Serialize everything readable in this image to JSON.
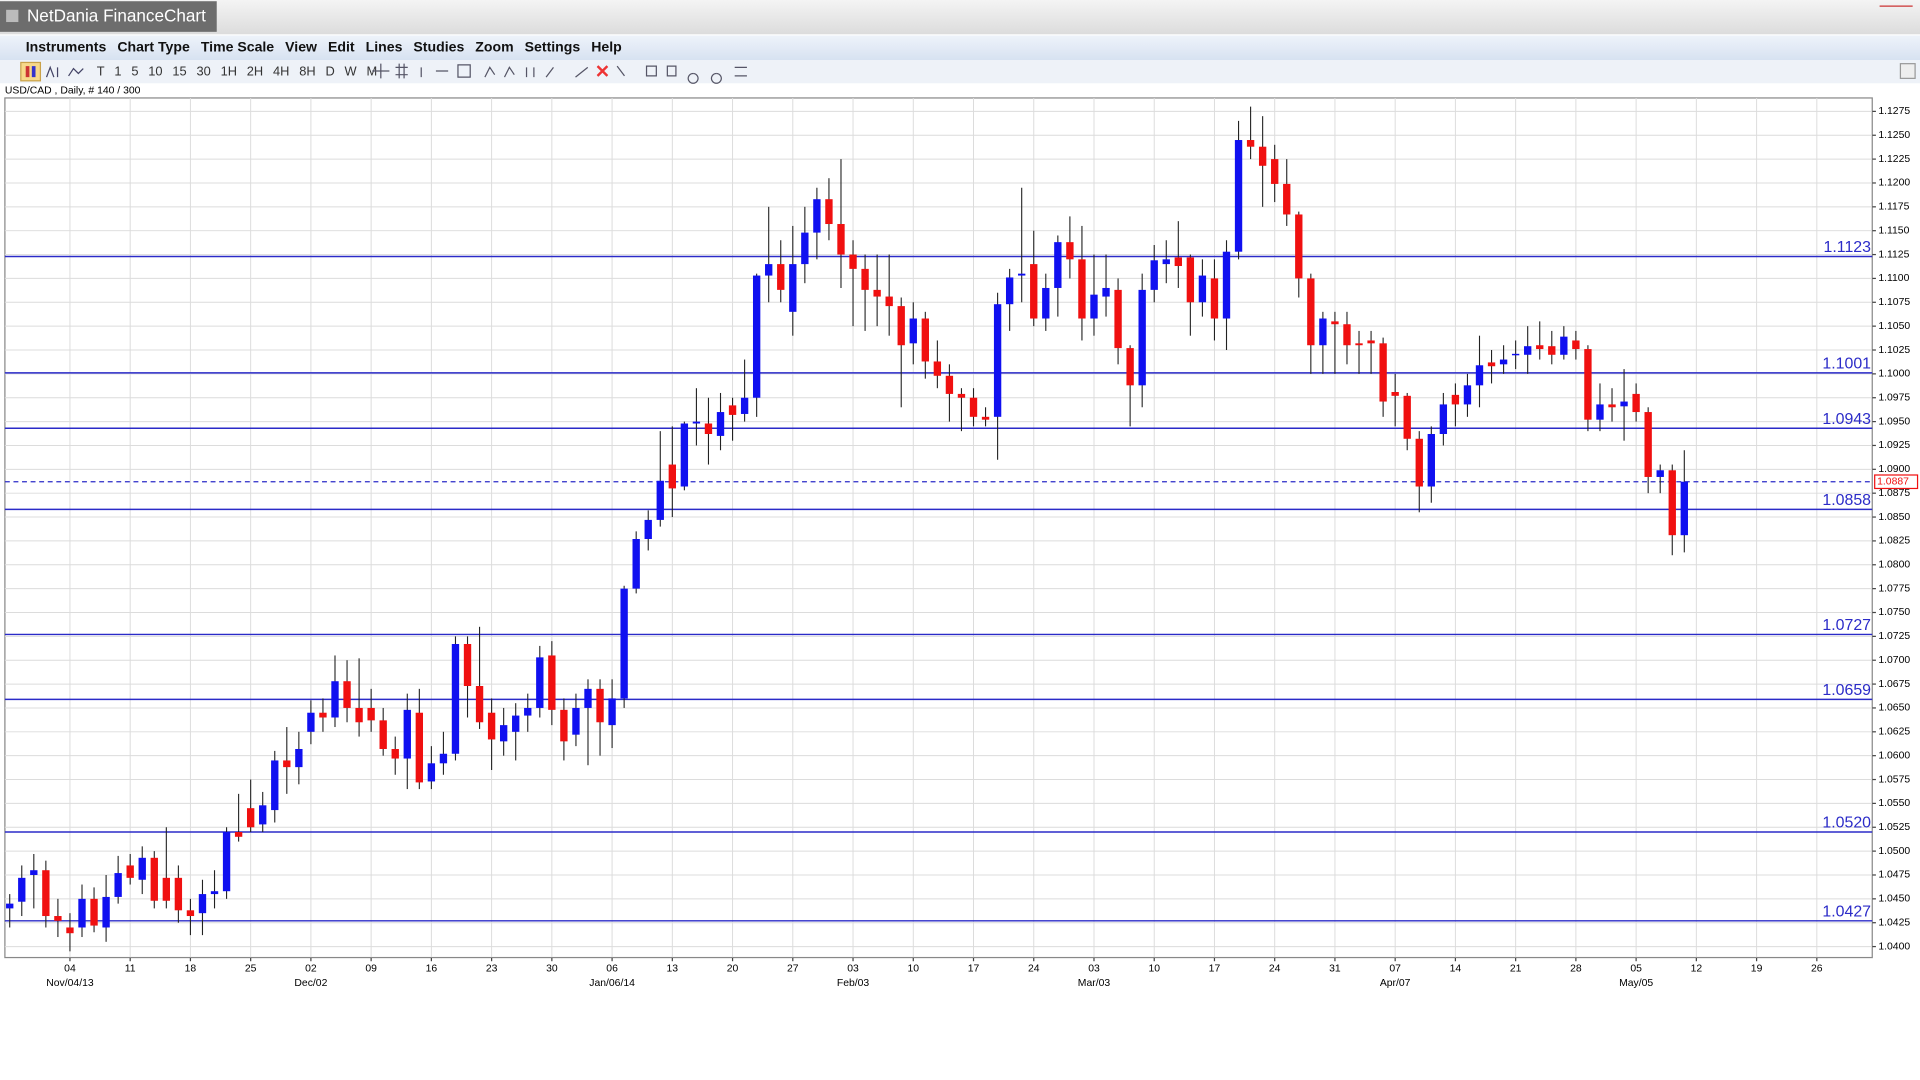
{
  "window_title": "NetDania FinanceChart",
  "menu": [
    "Instruments",
    "Chart Type",
    "Time Scale",
    "View",
    "Edit",
    "Lines",
    "Studies",
    "Zoom",
    "Settings",
    "Help"
  ],
  "toolbar": [
    "T",
    "1",
    "5",
    "10",
    "15",
    "30",
    "1H",
    "2H",
    "4H",
    "8H",
    "D",
    "W",
    "M"
  ],
  "chart_data": {
    "type": "candlestick",
    "title": "USD/CAD , Daily, # 140 / 300",
    "up_color": "#1010f0",
    "down_color": "#f01010",
    "level_color": "#2b2bc8",
    "grid": true,
    "ylim": [
      1.03885,
      1.12865
    ],
    "yticks": [
      {
        "value": 1.04,
        "label": "1.0400"
      },
      1.0425,
      {
        "value": 1.045,
        "label": "1.0450"
      },
      1.0475,
      {
        "value": 1.05,
        "label": "1.0500"
      },
      1.0525,
      {
        "value": 1.055,
        "label": "1.0550"
      },
      1.0575,
      {
        "value": 1.06,
        "label": "1.0600"
      },
      1.0625,
      {
        "value": 1.065,
        "label": "1.0650"
      },
      1.0675,
      {
        "value": 1.07,
        "label": "1.0700"
      },
      1.0725,
      {
        "value": 1.075,
        "label": "1.0750"
      },
      1.0775,
      {
        "value": 1.08,
        "label": "1.0800"
      },
      1.0825,
      {
        "value": 1.085,
        "label": "1.0850"
      },
      1.0875,
      {
        "value": 1.09,
        "label": "1.0900"
      },
      1.0925,
      {
        "value": 1.095,
        "label": "1.0950"
      },
      1.0975,
      {
        "value": 1.1,
        "label": "1.1000"
      },
      1.1025,
      {
        "value": 1.105,
        "label": "1.1050"
      },
      1.1075,
      {
        "value": 1.11,
        "label": "1.1100"
      },
      1.1125,
      {
        "value": 1.115,
        "label": "1.1150"
      },
      1.1175,
      {
        "value": 1.12,
        "label": "1.1200"
      },
      1.1225,
      {
        "value": 1.125,
        "label": "1.1250"
      },
      1.1275
    ],
    "levels": [
      1.1123,
      1.1001,
      1.0943,
      1.0858,
      1.0727,
      1.0659,
      {
        "value": 1.052,
        "label": "1.0520"
      },
      1.0427
    ],
    "last": 1.0887,
    "categories": [
      null,
      null,
      null,
      null,
      null,
      "04",
      null,
      null,
      null,
      null,
      "11",
      null,
      null,
      null,
      null,
      "18",
      null,
      null,
      null,
      null,
      "25",
      null,
      null,
      null,
      null,
      "02",
      null,
      null,
      null,
      null,
      "09",
      null,
      null,
      null,
      null,
      "16",
      null,
      null,
      null,
      null,
      "23",
      null,
      null,
      null,
      null,
      "30",
      null,
      null,
      null,
      null,
      "06",
      null,
      null,
      null,
      null,
      "13",
      null,
      null,
      null,
      null,
      "20",
      null,
      null,
      null,
      null,
      "27",
      null,
      null,
      null,
      null,
      "03",
      null,
      null,
      null,
      null,
      "10",
      null,
      null,
      null,
      null,
      "17",
      null,
      null,
      null,
      null,
      "24",
      null,
      null,
      null,
      null,
      "03",
      null,
      null,
      null,
      null,
      "10",
      null,
      null,
      null,
      null,
      "17",
      null,
      null,
      null,
      null,
      "24",
      null,
      null,
      null,
      null,
      "31",
      null,
      null,
      null,
      null,
      "07",
      null,
      null,
      null,
      null,
      "14",
      null,
      null,
      null,
      null,
      "21",
      null,
      null,
      null,
      null,
      "28",
      null,
      null,
      null,
      null,
      "05",
      null,
      null,
      null,
      null,
      "12",
      null,
      null,
      null,
      null,
      "19",
      null,
      null,
      null,
      null,
      "26",
      null,
      null,
      null,
      null
    ],
    "category_groups": [
      null,
      null,
      null,
      null,
      null,
      "Nov/04/13",
      null,
      null,
      null,
      null,
      null,
      null,
      null,
      null,
      null,
      null,
      null,
      null,
      null,
      null,
      null,
      null,
      null,
      null,
      null,
      "Dec/02",
      null,
      null,
      null,
      null,
      null,
      null,
      null,
      null,
      null,
      null,
      null,
      null,
      null,
      null,
      null,
      null,
      null,
      null,
      null,
      null,
      null,
      null,
      null,
      null,
      "Jan/06/14",
      null,
      null,
      null,
      null,
      null,
      null,
      null,
      null,
      null,
      null,
      null,
      null,
      null,
      null,
      null,
      null,
      null,
      null,
      null,
      "Feb/03",
      null,
      null,
      null,
      null,
      null,
      null,
      null,
      null,
      null,
      null,
      null,
      null,
      null,
      null,
      null,
      null,
      null,
      null,
      null,
      "Mar/03",
      null,
      null,
      null,
      null,
      null,
      null,
      null,
      null,
      null,
      null,
      null,
      null,
      null,
      null,
      null,
      null,
      null,
      null,
      null,
      null,
      null,
      null,
      null,
      null,
      "Apr/07",
      null,
      null,
      null,
      null,
      null,
      null,
      null,
      null,
      null,
      null,
      null,
      null,
      null,
      null,
      null,
      null,
      null,
      null,
      null,
      "May/05",
      null,
      null,
      null,
      null,
      null,
      null,
      null,
      null,
      null,
      null,
      null,
      null,
      null,
      null,
      null,
      null,
      null,
      null,
      null
    ],
    "open": [
      1.044,
      1.0447,
      1.0475,
      1.048,
      1.0432,
      1.042,
      1.042,
      1.045,
      1.042,
      1.0452,
      1.0485,
      1.047,
      1.0493,
      1.0472,
      1.0472,
      1.0438,
      1.0435,
      1.0455,
      1.0458,
      1.052,
      1.0545,
      1.0528,
      1.0543,
      1.0595,
      1.0588,
      1.0625,
      1.0645,
      1.064,
      1.0678,
      1.065,
      1.065,
      1.0637,
      1.0607,
      1.0597,
      1.0645,
      1.0573,
      1.0592,
      1.0602,
      1.0717,
      1.0673,
      1.0645,
      1.0615,
      1.0625,
      1.0642,
      1.065,
      1.0705,
      1.0648,
      1.0622,
      1.065,
      1.067,
      1.0632,
      1.066,
      1.0775,
      1.0827,
      1.0847,
      1.0905,
      1.0882,
      1.0948,
      1.0948,
      1.0935,
      1.0967,
      1.0958,
      1.0975,
      1.1103,
      1.1115,
      1.1065,
      1.1115,
      1.1148,
      1.1183,
      1.1157,
      1.1125,
      1.111,
      1.1088,
      1.1081,
      1.1071,
      1.1032,
      1.1058,
      1.1013,
      1.0998,
      1.0979,
      1.0975,
      1.0955,
      1.0955,
      1.1073,
      1.1103,
      1.1115,
      1.1058,
      1.109,
      1.1138,
      1.112,
      1.1058,
      1.1081,
      1.1088,
      1.1027,
      1.0988,
      1.1088,
      1.1115,
      1.1122,
      1.1122,
      1.1075,
      1.11,
      1.1058,
      1.1128,
      1.1245,
      1.1238,
      1.1225,
      1.1199,
      1.1167,
      1.11,
      1.103,
      1.1055,
      1.1052,
      1.1032,
      1.1035,
      1.1032,
      1.0981,
      1.0977,
      1.0932,
      1.0882,
      1.0937,
      1.0978,
      1.0968,
      1.0988,
      1.1012,
      1.101,
      1.102,
      1.102,
      1.103,
      1.1029,
      1.102,
      1.1035,
      1.1026,
      1.0952,
      1.0968,
      1.0966,
      1.0979,
      1.096,
      1.0892,
      1.0899,
      1.0831,
      null,
      null,
      null,
      null,
      null,
      null,
      null,
      null,
      null,
      null,
      null,
      null,
      null,
      null,
      null
    ],
    "high": [
      1.0455,
      1.0485,
      1.0497,
      1.049,
      1.045,
      1.0435,
      1.0465,
      1.0462,
      1.0475,
      1.0495,
      1.0497,
      1.0505,
      1.05,
      1.0525,
      1.0485,
      1.045,
      1.047,
      1.048,
      1.0525,
      1.056,
      1.0575,
      1.0562,
      1.0605,
      1.063,
      1.0625,
      1.0658,
      1.066,
      1.0705,
      1.07,
      1.0702,
      1.067,
      1.065,
      1.062,
      1.0665,
      1.067,
      1.061,
      1.0625,
      1.0725,
      1.0725,
      1.0735,
      1.066,
      1.065,
      1.0655,
      1.0665,
      1.0715,
      1.072,
      1.066,
      1.0665,
      1.068,
      1.068,
      1.068,
      1.0778,
      1.0835,
      1.0857,
      1.094,
      1.0945,
      1.095,
      1.0985,
      1.0975,
      1.098,
      1.0975,
      1.1015,
      1.1105,
      1.1175,
      1.114,
      1.1155,
      1.1175,
      1.1195,
      1.1205,
      1.1225,
      1.114,
      1.1125,
      1.1125,
      1.1125,
      1.108,
      1.1075,
      1.1065,
      1.1035,
      1.101,
      1.0985,
      1.0985,
      1.0965,
      1.1085,
      1.111,
      1.1195,
      1.115,
      1.1105,
      1.1145,
      1.1165,
      1.1155,
      1.1125,
      1.1125,
      1.11,
      1.103,
      1.1105,
      1.1135,
      1.114,
      1.116,
      1.1125,
      1.112,
      1.112,
      1.114,
      1.1265,
      1.128,
      1.127,
      1.124,
      1.1225,
      1.117,
      1.1105,
      1.1065,
      1.1065,
      1.1065,
      1.1045,
      1.1045,
      1.1038,
      1.1,
      1.098,
      1.094,
      1.0945,
      1.098,
      1.099,
      1.1,
      1.104,
      1.1025,
      1.103,
      1.1035,
      1.105,
      1.1055,
      1.1045,
      1.105,
      1.1045,
      1.103,
      1.099,
      1.0985,
      1.1005,
      1.099,
      1.0965,
      1.0905,
      1.0905,
      1.092,
      null,
      null,
      null,
      null,
      null,
      null,
      null,
      null,
      null,
      null,
      null,
      null,
      null,
      null,
      null
    ],
    "low": [
      1.042,
      1.0432,
      1.044,
      1.042,
      1.041,
      1.0395,
      1.041,
      1.0415,
      1.0405,
      1.0445,
      1.0465,
      1.0455,
      1.044,
      1.044,
      1.0425,
      1.0412,
      1.0412,
      1.044,
      1.045,
      1.051,
      1.052,
      1.052,
      1.053,
      1.056,
      1.057,
      1.0612,
      1.0625,
      1.063,
      1.0635,
      1.062,
      1.0625,
      1.06,
      1.058,
      1.0565,
      1.0565,
      1.0565,
      1.058,
      1.0595,
      1.064,
      1.0628,
      1.0585,
      1.06,
      1.0595,
      1.0625,
      1.064,
      1.0632,
      1.0595,
      1.061,
      1.059,
      1.06,
      1.0608,
      1.065,
      1.077,
      1.0815,
      1.084,
      1.085,
      1.0878,
      1.0925,
      1.0905,
      1.092,
      1.093,
      1.095,
      1.0955,
      1.1075,
      1.1075,
      1.104,
      1.1095,
      1.112,
      1.114,
      1.109,
      1.105,
      1.1045,
      1.105,
      1.104,
      1.0965,
      1.101,
      1.0995,
      1.0985,
      1.095,
      1.094,
      1.0945,
      1.0945,
      1.091,
      1.1045,
      1.1075,
      1.105,
      1.1045,
      1.106,
      1.11,
      1.1035,
      1.104,
      1.106,
      1.101,
      1.0945,
      1.0965,
      1.1075,
      1.1095,
      1.109,
      1.104,
      1.106,
      1.1035,
      1.1025,
      1.112,
      1.1225,
      1.1175,
      1.118,
      1.1155,
      1.108,
      1.1,
      1.1,
      1.1,
      1.101,
      1.1,
      1.1,
      1.0955,
      1.0945,
      1.092,
      1.0855,
      1.0865,
      1.0925,
      1.0945,
      1.0955,
      1.0965,
      1.099,
      1.1,
      1.1005,
      1.1,
      1.1015,
      1.101,
      1.1015,
      1.1015,
      1.094,
      1.094,
      1.095,
      1.093,
      1.095,
      1.0875,
      1.0875,
      1.081,
      1.0813,
      null,
      null,
      null,
      null,
      null,
      null,
      null,
      null,
      null,
      null,
      null,
      null,
      null,
      null,
      null
    ],
    "close": [
      1.0445,
      1.0472,
      1.048,
      1.0432,
      1.0427,
      1.0414,
      1.045,
      1.0422,
      1.0452,
      1.0477,
      1.0472,
      1.0493,
      1.0448,
      1.0448,
      1.0438,
      1.0432,
      1.0455,
      1.0458,
      1.052,
      1.0515,
      1.0525,
      1.0548,
      1.0595,
      1.0588,
      1.0607,
      1.0645,
      1.064,
      1.0678,
      1.065,
      1.0635,
      1.0637,
      1.0607,
      1.0597,
      1.0648,
      1.0572,
      1.0592,
      1.0602,
      1.0717,
      1.0673,
      1.0635,
      1.0617,
      1.0632,
      1.0642,
      1.065,
      1.0703,
      1.0648,
      1.0615,
      1.065,
      1.067,
      1.0635,
      1.066,
      1.0775,
      1.0827,
      1.0847,
      1.0888,
      1.088,
      1.0948,
      1.095,
      1.0937,
      1.096,
      1.0957,
      1.0975,
      1.1103,
      1.1115,
      1.1088,
      1.1115,
      1.1148,
      1.1183,
      1.1157,
      1.1125,
      1.111,
      1.1088,
      1.1081,
      1.1071,
      1.103,
      1.1058,
      1.1013,
      1.0998,
      1.0979,
      1.0975,
      1.0955,
      1.0952,
      1.1073,
      1.1101,
      1.1105,
      1.1058,
      1.109,
      1.1138,
      1.112,
      1.1058,
      1.1083,
      1.109,
      1.1027,
      1.0988,
      1.1088,
      1.1119,
      1.112,
      1.1113,
      1.1075,
      1.1103,
      1.1058,
      1.1128,
      1.1245,
      1.1238,
      1.1218,
      1.1199,
      1.1167,
      1.11,
      1.103,
      1.1058,
      1.1052,
      1.103,
      1.103,
      1.1032,
      1.0971,
      1.0977,
      1.0932,
      1.0882,
      1.0937,
      1.0968,
      1.0968,
      1.0988,
      1.1009,
      1.1008,
      1.1015,
      1.1021,
      1.1029,
      1.1026,
      1.102,
      1.1039,
      1.1026,
      1.0952,
      1.0968,
      1.0965,
      1.0971,
      1.096,
      1.0892,
      1.0899,
      1.0831,
      1.0887,
      null,
      null,
      null,
      null,
      null,
      null,
      null,
      null,
      null,
      null,
      null,
      null,
      null,
      null,
      null
    ]
  }
}
